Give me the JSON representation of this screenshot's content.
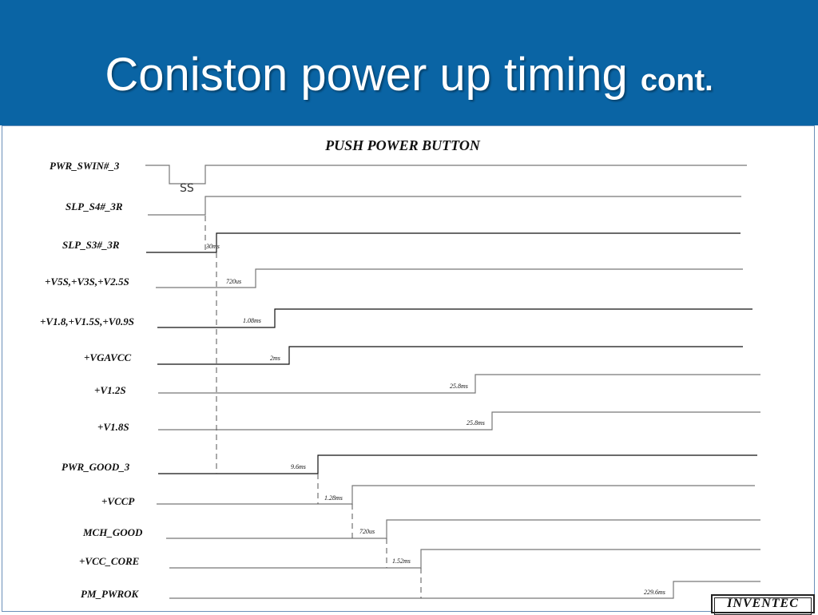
{
  "slide": {
    "title": "Coniston power up timing",
    "title_suffix": "cont.",
    "header_color": "#0a64a4"
  },
  "diagram": {
    "title": "PUSH POWER BUTTON",
    "signals": [
      {
        "id": "pwr-swin",
        "label": "PWR_SWIN#_3"
      },
      {
        "id": "slp-s4",
        "label": "SLP_S4#_3R"
      },
      {
        "id": "slp-s3",
        "label": "SLP_S3#_3R"
      },
      {
        "id": "v5s",
        "label": "+V5S,+V3S,+V2.5S"
      },
      {
        "id": "v18",
        "label": "+V1.8,+V1.5S,+V0.9S"
      },
      {
        "id": "vgavcc",
        "label": "+VGAVCC"
      },
      {
        "id": "v12s",
        "label": "+V1.2S"
      },
      {
        "id": "v18s",
        "label": "+V1.8S"
      },
      {
        "id": "pwr-good",
        "label": "PWR_GOOD_3"
      },
      {
        "id": "vccp",
        "label": "+VCCP"
      },
      {
        "id": "mch-good",
        "label": "MCH_GOOD"
      },
      {
        "id": "vcc-core",
        "label": "+VCC_CORE"
      },
      {
        "id": "pm-pwrok",
        "label": "PM_PWROK"
      }
    ],
    "delays": [
      "30ms",
      "720us",
      "1.08ms",
      "2ms",
      "25.8ms",
      "25.8ms",
      "9.6ms",
      "1.28ms",
      "720us",
      "1.52ms",
      "229.6ms"
    ],
    "pulse_marker": "SS"
  },
  "logo": {
    "text": "INVENTEC"
  }
}
